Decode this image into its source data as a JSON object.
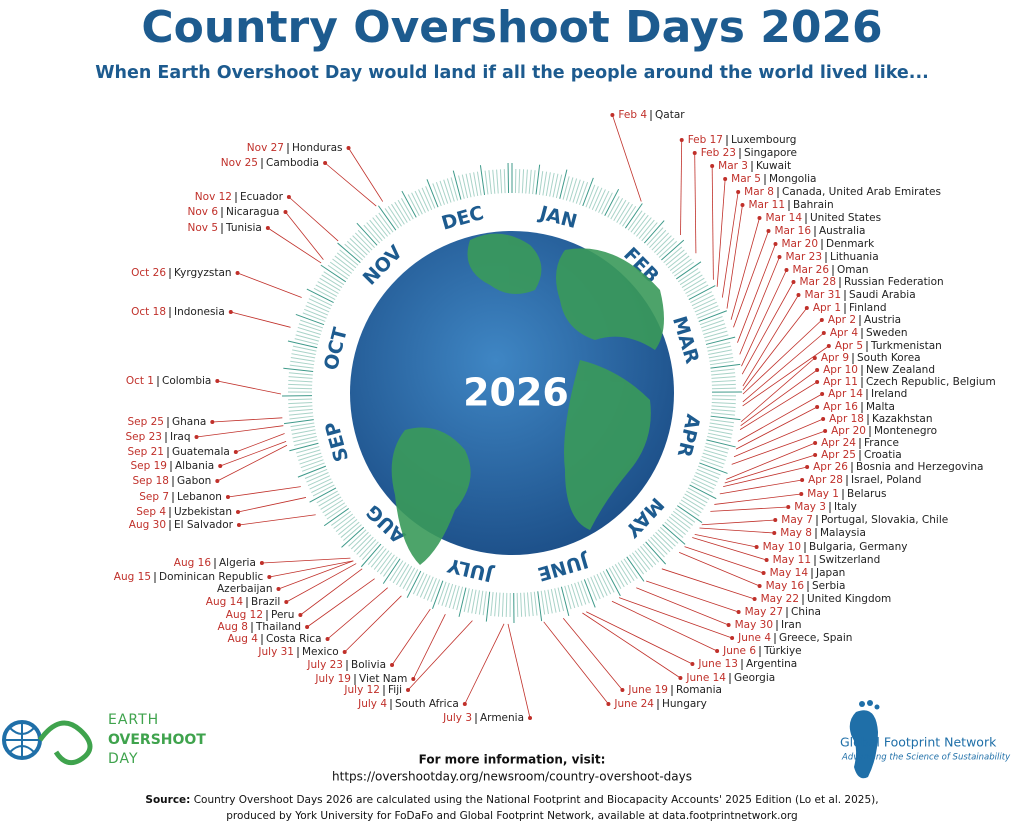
{
  "title": "Country Overshoot Days 2026",
  "subtitle": "When Earth Overshoot Day would land if all the people around the world lived like...",
  "months": [
    "JAN",
    "FEB",
    "MAR",
    "APR",
    "MAY",
    "JUNE",
    "JULY",
    "AUG",
    "SEP",
    "OCT",
    "NOV",
    "DEC"
  ],
  "globe_label": "2026",
  "entries": [
    {
      "date": "Feb 4",
      "country": "Qatar"
    },
    {
      "date": "Feb 17",
      "country": "Luxembourg"
    },
    {
      "date": "Feb 23",
      "country": "Singapore"
    },
    {
      "date": "Mar 3",
      "country": "Kuwait"
    },
    {
      "date": "Mar 5",
      "country": "Mongolia"
    },
    {
      "date": "Mar 8",
      "country": "Canada, United Arab Emirates"
    },
    {
      "date": "Mar 11",
      "country": "Bahrain"
    },
    {
      "date": "Mar 14",
      "country": "United States"
    },
    {
      "date": "Mar 16",
      "country": "Australia"
    },
    {
      "date": "Mar 20",
      "country": "Denmark"
    },
    {
      "date": "Mar 23",
      "country": "Lithuania"
    },
    {
      "date": "Mar 26",
      "country": "Oman"
    },
    {
      "date": "Mar 28",
      "country": "Russian Federation"
    },
    {
      "date": "Mar 31",
      "country": "Saudi Arabia"
    },
    {
      "date": "Apr 1",
      "country": "Finland"
    },
    {
      "date": "Apr 2",
      "country": "Austria"
    },
    {
      "date": "Apr 4",
      "country": "Sweden"
    },
    {
      "date": "Apr 5",
      "country": "Turkmenistan"
    },
    {
      "date": "Apr 9",
      "country": "South Korea"
    },
    {
      "date": "Apr 10",
      "country": "New Zealand"
    },
    {
      "date": "Apr 11",
      "country": "Czech Republic, Belgium"
    },
    {
      "date": "Apr 14",
      "country": "Ireland"
    },
    {
      "date": "Apr 16",
      "country": "Malta"
    },
    {
      "date": "Apr 18",
      "country": "Kazakhstan"
    },
    {
      "date": "Apr 20",
      "country": "Montenegro"
    },
    {
      "date": "Apr 24",
      "country": "France"
    },
    {
      "date": "Apr 25",
      "country": "Croatia"
    },
    {
      "date": "Apr 26",
      "country": "Bosnia and Herzegovina"
    },
    {
      "date": "Apr 28",
      "country": "Israel, Poland"
    },
    {
      "date": "May 1",
      "country": "Belarus"
    },
    {
      "date": "May 3",
      "country": "Italy"
    },
    {
      "date": "May 7",
      "country": "Portugal, Slovakia, Chile"
    },
    {
      "date": "May 8",
      "country": "Malaysia"
    },
    {
      "date": "May 10",
      "country": "Bulgaria, Germany"
    },
    {
      "date": "May 11",
      "country": "Switzerland"
    },
    {
      "date": "May 14",
      "country": "Japan"
    },
    {
      "date": "May 16",
      "country": "Serbia"
    },
    {
      "date": "May 22",
      "country": "United Kingdom"
    },
    {
      "date": "May 27",
      "country": "China"
    },
    {
      "date": "May 30",
      "country": "Iran"
    },
    {
      "date": "June 4",
      "country": "Greece, Spain"
    },
    {
      "date": "June 6",
      "country": "Türkiye"
    },
    {
      "date": "June 13",
      "country": "Argentina"
    },
    {
      "date": "June 14",
      "country": "Georgia"
    },
    {
      "date": "June 19",
      "country": "Romania"
    },
    {
      "date": "June 24",
      "country": "Hungary"
    },
    {
      "date": "July 3",
      "country": "Armenia"
    },
    {
      "date": "July 4",
      "country": "South Africa"
    },
    {
      "date": "July 12",
      "country": "Fiji"
    },
    {
      "date": "July 19",
      "country": "Viet Nam"
    },
    {
      "date": "July 23",
      "country": "Bolivia"
    },
    {
      "date": "July 31",
      "country": "Mexico"
    },
    {
      "date": "Aug 4",
      "country": "Costa Rica"
    },
    {
      "date": "Aug 8",
      "country": "Thailand"
    },
    {
      "date": "Aug 12",
      "country": "Peru"
    },
    {
      "date": "Aug 14",
      "country": "Brazil"
    },
    {
      "date": "Aug 15",
      "country": "Dominican Republic"
    },
    {
      "country": "Azerbaijan"
    },
    {
      "date": "Aug 16",
      "country": "Algeria"
    },
    {
      "date": "Aug 30",
      "country": "El Salvador"
    },
    {
      "date": "Sep 4",
      "country": "Uzbekistan"
    },
    {
      "date": "Sep 7",
      "country": "Lebanon"
    },
    {
      "date": "Sep 18",
      "country": "Gabon"
    },
    {
      "date": "Sep 19",
      "country": "Albania"
    },
    {
      "date": "Sep 21",
      "country": "Guatemala"
    },
    {
      "date": "Sep 23",
      "country": "Iraq"
    },
    {
      "date": "Sep 25",
      "country": "Ghana"
    },
    {
      "date": "Oct 1",
      "country": "Colombia"
    },
    {
      "date": "Oct 18",
      "country": "Indonesia"
    },
    {
      "date": "Oct 26",
      "country": "Kyrgyzstan"
    },
    {
      "date": "Nov 5",
      "country": "Tunisia"
    },
    {
      "date": "Nov 6",
      "country": "Nicaragua"
    },
    {
      "date": "Nov 12",
      "country": "Ecuador"
    },
    {
      "date": "Nov 25",
      "country": "Cambodia"
    },
    {
      "date": "Nov 27",
      "country": "Honduras"
    }
  ],
  "footer": {
    "info_heading": "For more information, visit:",
    "url": "https://overshootday.org/newsroom/country-overshoot-days",
    "source_label": "Source:",
    "source_text_1": "Country Overshoot Days 2026 are calculated using the National Footprint and Biocapacity Accounts' 2025 Edition (Lo et al. 2025),",
    "source_text_2": "produced by York University for FoDaFo and Global Footprint Network, available at data.footprintnetwork.org"
  },
  "logos": {
    "eod": [
      "EARTH",
      "OVERSHOOT",
      "DAY"
    ],
    "gfn_name": "Global Footprint Network",
    "gfn_tagline": "Advancing the Science of Sustainability"
  }
}
